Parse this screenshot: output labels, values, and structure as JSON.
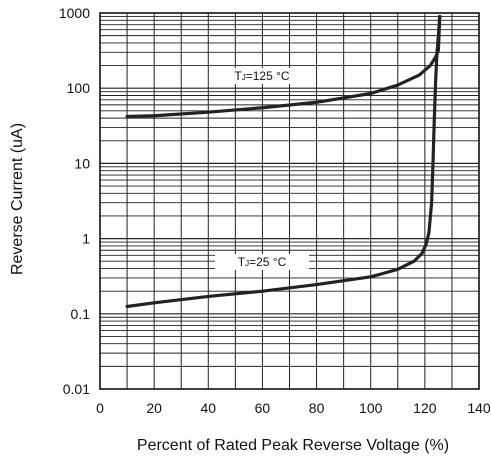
{
  "chart_data": {
    "type": "line",
    "xlabel": "Percent of Rated Peak Reverse Voltage (%)",
    "ylabel": "Reverse Current (uA)",
    "xlim": [
      0,
      140
    ],
    "ylim": [
      0.01,
      1000
    ],
    "yscale": "log",
    "grid": true,
    "x_ticks": [
      "0",
      "20",
      "40",
      "60",
      "80",
      "100",
      "120",
      "140"
    ],
    "y_ticks": [
      "0.01",
      "0.1",
      "1",
      "10",
      "100",
      "1000"
    ],
    "series": [
      {
        "label_prefix": "T",
        "label_sub": "J",
        "label_rest": "=125 °C",
        "color": "#222222",
        "x": [
          10,
          20,
          40,
          60,
          80,
          100,
          110,
          118,
          122,
          124,
          125,
          125.5
        ],
        "y": [
          42,
          43,
          48,
          55,
          65,
          85,
          110,
          150,
          200,
          260,
          320,
          900
        ]
      },
      {
        "label_prefix": "T",
        "label_sub": "J",
        "label_rest": "=25 °C",
        "color": "#222222",
        "x": [
          10,
          20,
          40,
          60,
          80,
          100,
          110,
          116,
          119,
          120.5,
          121.5,
          122.5,
          123,
          123.5,
          124,
          124.5,
          125,
          125.5
        ],
        "y": [
          0.125,
          0.14,
          0.17,
          0.2,
          0.245,
          0.31,
          0.39,
          0.5,
          0.64,
          0.85,
          1.2,
          3,
          10,
          40,
          130,
          300,
          500,
          900
        ]
      }
    ]
  }
}
